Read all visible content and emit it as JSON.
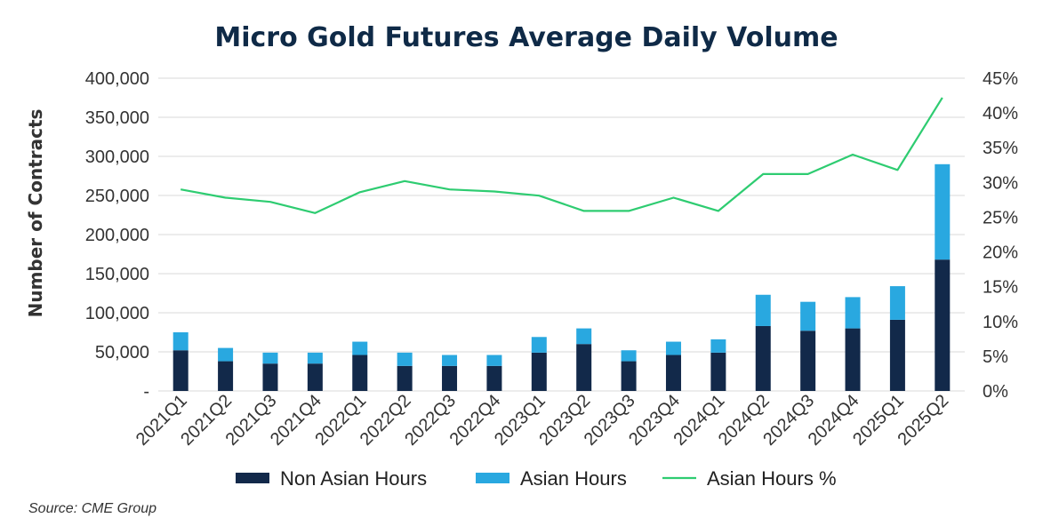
{
  "chart_data": {
    "type": "bar",
    "title": "Micro Gold Futures Average Daily Volume",
    "ylabel": "Number of Contracts",
    "y2label": "",
    "ylim": [
      0,
      400000
    ],
    "y2lim": [
      0,
      45
    ],
    "y_ticks": [
      "-",
      "50,000",
      "100,000",
      "150,000",
      "200,000",
      "250,000",
      "300,000",
      "350,000",
      "400,000"
    ],
    "y2_ticks": [
      "0%",
      "5%",
      "10%",
      "15%",
      "20%",
      "25%",
      "30%",
      "35%",
      "40%",
      "45%"
    ],
    "categories": [
      "2021Q1",
      "2021Q2",
      "2021Q3",
      "2021Q4",
      "2022Q1",
      "2022Q2",
      "2022Q3",
      "2022Q4",
      "2023Q1",
      "2023Q2",
      "2023Q3",
      "2023Q4",
      "2024Q1",
      "2024Q2",
      "2024Q3",
      "2024Q4",
      "2025Q1",
      "2025Q2"
    ],
    "stacked": true,
    "grid": true,
    "legend_position": "bottom",
    "series": [
      {
        "name": "Non Asian Hours",
        "kind": "bar",
        "color": "#12294a",
        "values": [
          52000,
          38000,
          35000,
          35000,
          46000,
          32000,
          32000,
          32000,
          49000,
          60000,
          38000,
          46000,
          49000,
          83000,
          77000,
          80000,
          91000,
          168000
        ]
      },
      {
        "name": "Asian Hours",
        "kind": "bar",
        "color": "#29a8e0",
        "values": [
          23000,
          17000,
          14000,
          14000,
          17000,
          17000,
          14000,
          14000,
          20000,
          20000,
          14000,
          17000,
          17000,
          40000,
          37000,
          40000,
          43000,
          122000
        ]
      },
      {
        "name": "Asian Hours %",
        "kind": "line",
        "axis": "right",
        "color": "#2ecc71",
        "values": [
          29,
          27.8,
          27.2,
          25.6,
          28.6,
          30.2,
          29,
          28.7,
          28.1,
          25.9,
          25.9,
          27.8,
          25.9,
          31.2,
          31.2,
          34,
          31.8,
          42.2
        ]
      }
    ],
    "source": "Source: CME Group"
  }
}
